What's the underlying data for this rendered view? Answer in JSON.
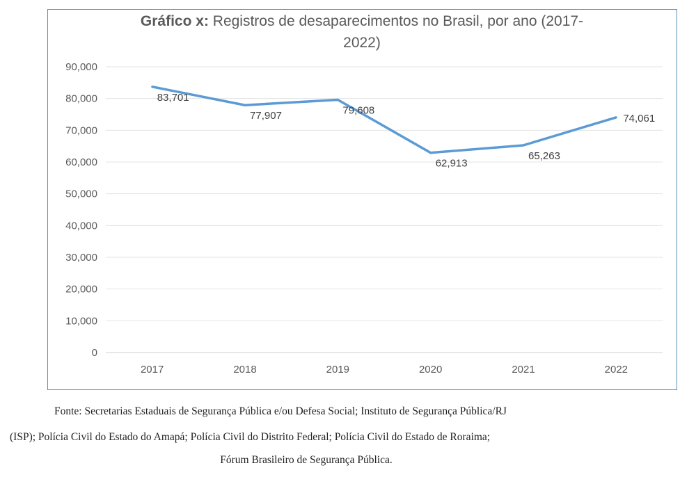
{
  "chart_data": {
    "type": "line",
    "title_bold": "Gráfico x:",
    "title_line1": "Registros de desaparecimentos no Brasil, por ano (2017-",
    "title_line2": "2022)",
    "categories": [
      "2017",
      "2018",
      "2019",
      "2020",
      "2021",
      "2022"
    ],
    "series": [
      {
        "name": "Registros",
        "values": [
          83701,
          77907,
          79608,
          62913,
          65263,
          74061
        ]
      }
    ],
    "data_labels": [
      "83,701",
      "77,907",
      "79,608",
      "62,913",
      "65,263",
      "74,061"
    ],
    "y_ticks": [
      "0",
      "10,000",
      "20,000",
      "30,000",
      "40,000",
      "50,000",
      "60,000",
      "70,000",
      "80,000",
      "90,000"
    ],
    "ylim": [
      0,
      90000
    ],
    "grid": true,
    "line_color": "#5b9bd5"
  },
  "footnote": {
    "line1": "Fonte: Secretarias Estaduais de Segurança Pública e/ou Defesa Social; Instituto de Segurança Pública/RJ",
    "line2": "(ISP); Polícia Civil do Estado do Amapá; Polícia Civil do Distrito Federal; Polícia Civil do Estado de Roraima;",
    "line3": "Fórum Brasileiro de Segurança Pública."
  }
}
